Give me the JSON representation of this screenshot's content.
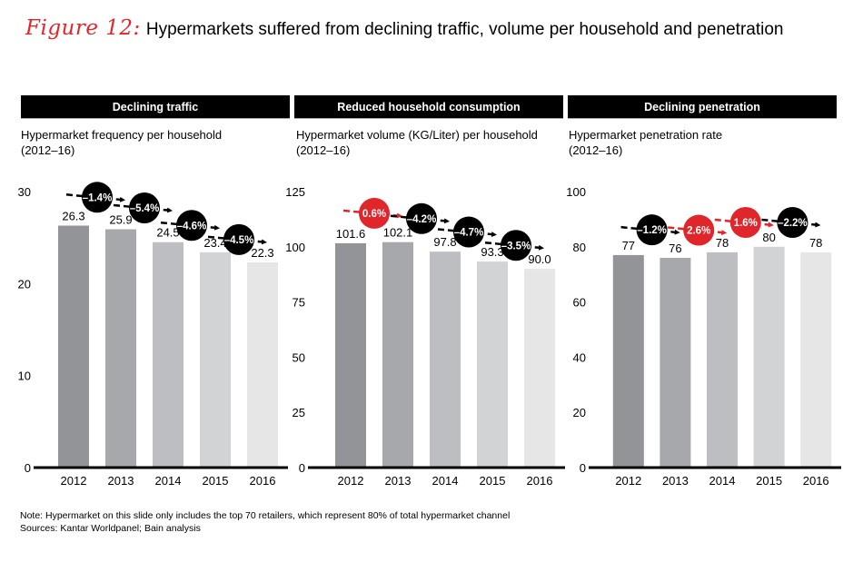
{
  "figure": {
    "number": "Figure 12:",
    "title": "Hypermarkets suffered from declining traffic, volume per household and penetration"
  },
  "colors": {
    "bars": [
      "#939498",
      "#a7a8ab",
      "#bdbec1",
      "#d2d3d5",
      "#e6e6e7"
    ],
    "negative": "#000000",
    "positive": "#e0262b"
  },
  "chart_data": [
    {
      "type": "bar",
      "header": "Declining traffic",
      "title": "Hypermarket frequency per household",
      "subtitle": "(2012–16)",
      "categories": [
        "2012",
        "2013",
        "2014",
        "2015",
        "2016"
      ],
      "values": [
        26.3,
        25.9,
        24.5,
        23.4,
        22.3
      ],
      "value_labels": [
        "26.3",
        "25.9",
        "24.5",
        "23.4",
        "22.3"
      ],
      "yticks": [
        0,
        10,
        20,
        30
      ],
      "ylim": [
        0,
        30
      ],
      "grid": false,
      "growth": [
        {
          "label": "–1.4%",
          "sign": "negative"
        },
        {
          "label": "–5.4%",
          "sign": "negative"
        },
        {
          "label": "–4.6%",
          "sign": "negative"
        },
        {
          "label": "–4.5%",
          "sign": "negative"
        }
      ]
    },
    {
      "type": "bar",
      "header": "Reduced household consumption",
      "title": "Hypermarket volume (KG/Liter) per household",
      "subtitle": "(2012–16)",
      "categories": [
        "2012",
        "2013",
        "2014",
        "2015",
        "2016"
      ],
      "values": [
        101.6,
        102.1,
        97.8,
        93.3,
        90.0
      ],
      "value_labels": [
        "101.6",
        "102.1",
        "97.8",
        "93.3",
        "90.0"
      ],
      "yticks": [
        0,
        25,
        50,
        75,
        100,
        125
      ],
      "ylim": [
        0,
        125
      ],
      "grid": false,
      "growth": [
        {
          "label": "0.6%",
          "sign": "positive"
        },
        {
          "label": "–4.2%",
          "sign": "negative"
        },
        {
          "label": "–4.7%",
          "sign": "negative"
        },
        {
          "label": "–3.5%",
          "sign": "negative"
        }
      ]
    },
    {
      "type": "bar",
      "header": "Declining penetration",
      "title": "Hypermarket penetration rate",
      "subtitle": "(2012–16)",
      "categories": [
        "2012",
        "2013",
        "2014",
        "2015",
        "2016"
      ],
      "values": [
        77,
        76,
        78,
        80,
        78
      ],
      "value_labels": [
        "77",
        "76",
        "78",
        "80",
        "78"
      ],
      "yticks": [
        0,
        20,
        40,
        60,
        80,
        100
      ],
      "ylim": [
        0,
        100
      ],
      "grid": false,
      "growth": [
        {
          "label": "–1.2%",
          "sign": "negative"
        },
        {
          "label": "2.6%",
          "sign": "positive"
        },
        {
          "label": "1.6%",
          "sign": "positive"
        },
        {
          "label": "–2.2%",
          "sign": "negative"
        }
      ]
    }
  ],
  "footer": {
    "note": "Note: Hypermarket on this slide only includes the top 70 retailers, which represent 80% of total hypermarket channel",
    "sources": "Sources: Kantar Worldpanel; Bain analysis"
  }
}
